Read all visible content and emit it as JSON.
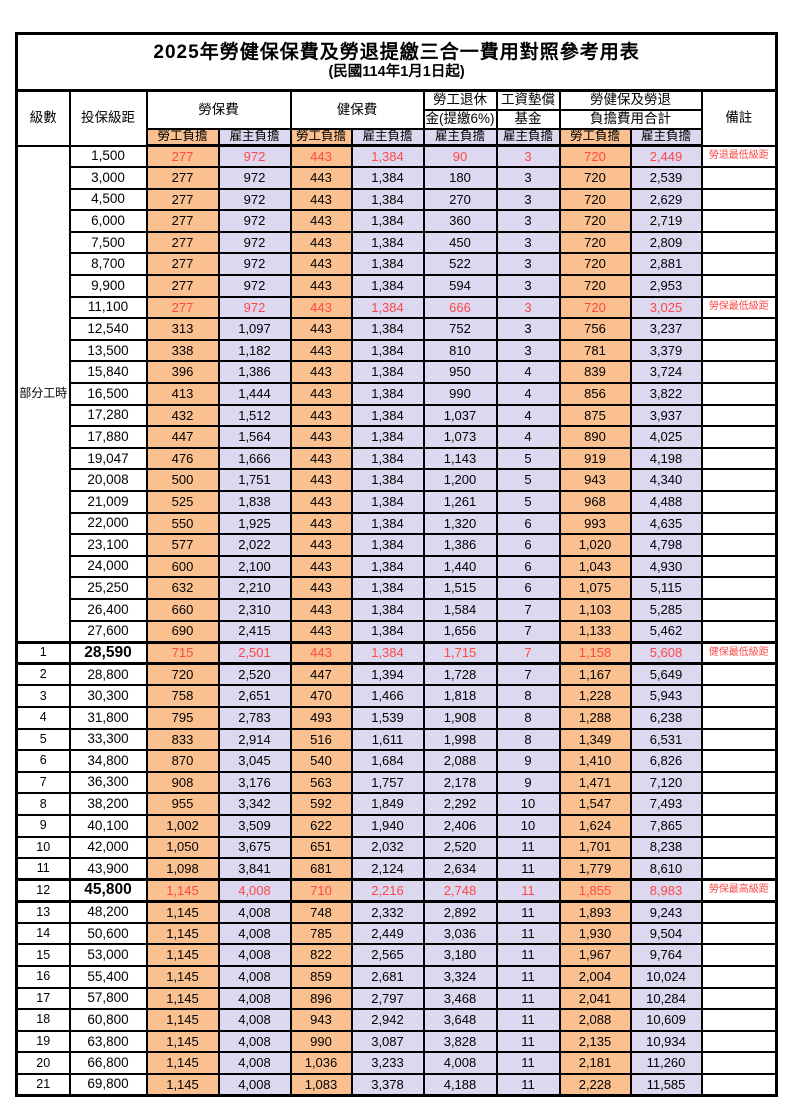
{
  "title": "2025年勞健保保費及勞退提繳三合一費用對照參考用表",
  "subtitle": "(民國114年1月1日起)",
  "part_time_label": "部分工時",
  "colors": {
    "employee_bg": "#FAC090",
    "employer_bg": "#DBD8EF",
    "highlight_text": "#FF4747",
    "border": "#000000"
  },
  "header": {
    "level": "級數",
    "bracket": "投保級距",
    "labor_insurance": "勞保費",
    "health_insurance": "健保費",
    "pension_line1": "勞工退休",
    "pension_line2": "金(提繳6%)",
    "wage_fund_line1": "工資墊償",
    "wage_fund_line2": "基金",
    "total_line1": "勞健保及勞退",
    "total_line2": "負擔費用合計",
    "remarks": "備註",
    "employee": "勞工負擔",
    "employer": "雇主負擔"
  },
  "rows": [
    {
      "level": "",
      "bracket": "1,500",
      "cells": [
        "277",
        "972",
        "443",
        "1,384",
        "90",
        "3",
        "720",
        "2,449"
      ],
      "note": "勞退最低級距",
      "highlight": true,
      "emphasis": false
    },
    {
      "level": "",
      "bracket": "3,000",
      "cells": [
        "277",
        "972",
        "443",
        "1,384",
        "180",
        "3",
        "720",
        "2,539"
      ],
      "note": "",
      "highlight": false,
      "emphasis": false
    },
    {
      "level": "",
      "bracket": "4,500",
      "cells": [
        "277",
        "972",
        "443",
        "1,384",
        "270",
        "3",
        "720",
        "2,629"
      ],
      "note": "",
      "highlight": false,
      "emphasis": false
    },
    {
      "level": "",
      "bracket": "6,000",
      "cells": [
        "277",
        "972",
        "443",
        "1,384",
        "360",
        "3",
        "720",
        "2,719"
      ],
      "note": "",
      "highlight": false,
      "emphasis": false
    },
    {
      "level": "",
      "bracket": "7,500",
      "cells": [
        "277",
        "972",
        "443",
        "1,384",
        "450",
        "3",
        "720",
        "2,809"
      ],
      "note": "",
      "highlight": false,
      "emphasis": false
    },
    {
      "level": "",
      "bracket": "8,700",
      "cells": [
        "277",
        "972",
        "443",
        "1,384",
        "522",
        "3",
        "720",
        "2,881"
      ],
      "note": "",
      "highlight": false,
      "emphasis": false
    },
    {
      "level": "",
      "bracket": "9,900",
      "cells": [
        "277",
        "972",
        "443",
        "1,384",
        "594",
        "3",
        "720",
        "2,953"
      ],
      "note": "",
      "highlight": false,
      "emphasis": false
    },
    {
      "level": "",
      "bracket": "11,100",
      "cells": [
        "277",
        "972",
        "443",
        "1,384",
        "666",
        "3",
        "720",
        "3,025"
      ],
      "note": "勞保最低級距",
      "highlight": true,
      "emphasis": false
    },
    {
      "level": "",
      "bracket": "12,540",
      "cells": [
        "313",
        "1,097",
        "443",
        "1,384",
        "752",
        "3",
        "756",
        "3,237"
      ],
      "note": "",
      "highlight": false,
      "emphasis": false
    },
    {
      "level": "",
      "bracket": "13,500",
      "cells": [
        "338",
        "1,182",
        "443",
        "1,384",
        "810",
        "3",
        "781",
        "3,379"
      ],
      "note": "",
      "highlight": false,
      "emphasis": false
    },
    {
      "level": "",
      "bracket": "15,840",
      "cells": [
        "396",
        "1,386",
        "443",
        "1,384",
        "950",
        "4",
        "839",
        "3,724"
      ],
      "note": "",
      "highlight": false,
      "emphasis": false
    },
    {
      "level": "",
      "bracket": "16,500",
      "cells": [
        "413",
        "1,444",
        "443",
        "1,384",
        "990",
        "4",
        "856",
        "3,822"
      ],
      "note": "",
      "highlight": false,
      "emphasis": false
    },
    {
      "level": "",
      "bracket": "17,280",
      "cells": [
        "432",
        "1,512",
        "443",
        "1,384",
        "1,037",
        "4",
        "875",
        "3,937"
      ],
      "note": "",
      "highlight": false,
      "emphasis": false
    },
    {
      "level": "",
      "bracket": "17,880",
      "cells": [
        "447",
        "1,564",
        "443",
        "1,384",
        "1,073",
        "4",
        "890",
        "4,025"
      ],
      "note": "",
      "highlight": false,
      "emphasis": false
    },
    {
      "level": "",
      "bracket": "19,047",
      "cells": [
        "476",
        "1,666",
        "443",
        "1,384",
        "1,143",
        "5",
        "919",
        "4,198"
      ],
      "note": "",
      "highlight": false,
      "emphasis": false
    },
    {
      "level": "",
      "bracket": "20,008",
      "cells": [
        "500",
        "1,751",
        "443",
        "1,384",
        "1,200",
        "5",
        "943",
        "4,340"
      ],
      "note": "",
      "highlight": false,
      "emphasis": false
    },
    {
      "level": "",
      "bracket": "21,009",
      "cells": [
        "525",
        "1,838",
        "443",
        "1,384",
        "1,261",
        "5",
        "968",
        "4,488"
      ],
      "note": "",
      "highlight": false,
      "emphasis": false
    },
    {
      "level": "",
      "bracket": "22,000",
      "cells": [
        "550",
        "1,925",
        "443",
        "1,384",
        "1,320",
        "6",
        "993",
        "4,635"
      ],
      "note": "",
      "highlight": false,
      "emphasis": false
    },
    {
      "level": "",
      "bracket": "23,100",
      "cells": [
        "577",
        "2,022",
        "443",
        "1,384",
        "1,386",
        "6",
        "1,020",
        "4,798"
      ],
      "note": "",
      "highlight": false,
      "emphasis": false
    },
    {
      "level": "",
      "bracket": "24,000",
      "cells": [
        "600",
        "2,100",
        "443",
        "1,384",
        "1,440",
        "6",
        "1,043",
        "4,930"
      ],
      "note": "",
      "highlight": false,
      "emphasis": false
    },
    {
      "level": "",
      "bracket": "25,250",
      "cells": [
        "632",
        "2,210",
        "443",
        "1,384",
        "1,515",
        "6",
        "1,075",
        "5,115"
      ],
      "note": "",
      "highlight": false,
      "emphasis": false
    },
    {
      "level": "",
      "bracket": "26,400",
      "cells": [
        "660",
        "2,310",
        "443",
        "1,384",
        "1,584",
        "7",
        "1,103",
        "5,285"
      ],
      "note": "",
      "highlight": false,
      "emphasis": false
    },
    {
      "level": "",
      "bracket": "27,600",
      "cells": [
        "690",
        "2,415",
        "443",
        "1,384",
        "1,656",
        "7",
        "1,133",
        "5,462"
      ],
      "note": "",
      "highlight": false,
      "emphasis": false
    },
    {
      "level": "1",
      "bracket": "28,590",
      "cells": [
        "715",
        "2,501",
        "443",
        "1,384",
        "1,715",
        "7",
        "1,158",
        "5,608"
      ],
      "note": "健保最低級距",
      "highlight": true,
      "emphasis": true
    },
    {
      "level": "2",
      "bracket": "28,800",
      "cells": [
        "720",
        "2,520",
        "447",
        "1,394",
        "1,728",
        "7",
        "1,167",
        "5,649"
      ],
      "note": "",
      "highlight": false,
      "emphasis": false
    },
    {
      "level": "3",
      "bracket": "30,300",
      "cells": [
        "758",
        "2,651",
        "470",
        "1,466",
        "1,818",
        "8",
        "1,228",
        "5,943"
      ],
      "note": "",
      "highlight": false,
      "emphasis": false
    },
    {
      "level": "4",
      "bracket": "31,800",
      "cells": [
        "795",
        "2,783",
        "493",
        "1,539",
        "1,908",
        "8",
        "1,288",
        "6,238"
      ],
      "note": "",
      "highlight": false,
      "emphasis": false
    },
    {
      "level": "5",
      "bracket": "33,300",
      "cells": [
        "833",
        "2,914",
        "516",
        "1,611",
        "1,998",
        "8",
        "1,349",
        "6,531"
      ],
      "note": "",
      "highlight": false,
      "emphasis": false
    },
    {
      "level": "6",
      "bracket": "34,800",
      "cells": [
        "870",
        "3,045",
        "540",
        "1,684",
        "2,088",
        "9",
        "1,410",
        "6,826"
      ],
      "note": "",
      "highlight": false,
      "emphasis": false
    },
    {
      "level": "7",
      "bracket": "36,300",
      "cells": [
        "908",
        "3,176",
        "563",
        "1,757",
        "2,178",
        "9",
        "1,471",
        "7,120"
      ],
      "note": "",
      "highlight": false,
      "emphasis": false
    },
    {
      "level": "8",
      "bracket": "38,200",
      "cells": [
        "955",
        "3,342",
        "592",
        "1,849",
        "2,292",
        "10",
        "1,547",
        "7,493"
      ],
      "note": "",
      "highlight": false,
      "emphasis": false
    },
    {
      "level": "9",
      "bracket": "40,100",
      "cells": [
        "1,002",
        "3,509",
        "622",
        "1,940",
        "2,406",
        "10",
        "1,624",
        "7,865"
      ],
      "note": "",
      "highlight": false,
      "emphasis": false
    },
    {
      "level": "10",
      "bracket": "42,000",
      "cells": [
        "1,050",
        "3,675",
        "651",
        "2,032",
        "2,520",
        "11",
        "1,701",
        "8,238"
      ],
      "note": "",
      "highlight": false,
      "emphasis": false
    },
    {
      "level": "11",
      "bracket": "43,900",
      "cells": [
        "1,098",
        "3,841",
        "681",
        "2,124",
        "2,634",
        "11",
        "1,779",
        "8,610"
      ],
      "note": "",
      "highlight": false,
      "emphasis": false
    },
    {
      "level": "12",
      "bracket": "45,800",
      "cells": [
        "1,145",
        "4,008",
        "710",
        "2,216",
        "2,748",
        "11",
        "1,855",
        "8,983"
      ],
      "note": "勞保最高級距",
      "highlight": true,
      "emphasis": true
    },
    {
      "level": "13",
      "bracket": "48,200",
      "cells": [
        "1,145",
        "4,008",
        "748",
        "2,332",
        "2,892",
        "11",
        "1,893",
        "9,243"
      ],
      "note": "",
      "highlight": false,
      "emphasis": false
    },
    {
      "level": "14",
      "bracket": "50,600",
      "cells": [
        "1,145",
        "4,008",
        "785",
        "2,449",
        "3,036",
        "11",
        "1,930",
        "9,504"
      ],
      "note": "",
      "highlight": false,
      "emphasis": false
    },
    {
      "level": "15",
      "bracket": "53,000",
      "cells": [
        "1,145",
        "4,008",
        "822",
        "2,565",
        "3,180",
        "11",
        "1,967",
        "9,764"
      ],
      "note": "",
      "highlight": false,
      "emphasis": false
    },
    {
      "level": "16",
      "bracket": "55,400",
      "cells": [
        "1,145",
        "4,008",
        "859",
        "2,681",
        "3,324",
        "11",
        "2,004",
        "10,024"
      ],
      "note": "",
      "highlight": false,
      "emphasis": false
    },
    {
      "level": "17",
      "bracket": "57,800",
      "cells": [
        "1,145",
        "4,008",
        "896",
        "2,797",
        "3,468",
        "11",
        "2,041",
        "10,284"
      ],
      "note": "",
      "highlight": false,
      "emphasis": false
    },
    {
      "level": "18",
      "bracket": "60,800",
      "cells": [
        "1,145",
        "4,008",
        "943",
        "2,942",
        "3,648",
        "11",
        "2,088",
        "10,609"
      ],
      "note": "",
      "highlight": false,
      "emphasis": false
    },
    {
      "level": "19",
      "bracket": "63,800",
      "cells": [
        "1,145",
        "4,008",
        "990",
        "3,087",
        "3,828",
        "11",
        "2,135",
        "10,934"
      ],
      "note": "",
      "highlight": false,
      "emphasis": false
    },
    {
      "level": "20",
      "bracket": "66,800",
      "cells": [
        "1,145",
        "4,008",
        "1,036",
        "3,233",
        "4,008",
        "11",
        "2,181",
        "11,260"
      ],
      "note": "",
      "highlight": false,
      "emphasis": false
    },
    {
      "level": "21",
      "bracket": "69,800",
      "cells": [
        "1,145",
        "4,008",
        "1,083",
        "3,378",
        "4,188",
        "11",
        "2,228",
        "11,585"
      ],
      "note": "",
      "highlight": false,
      "emphasis": false
    }
  ]
}
